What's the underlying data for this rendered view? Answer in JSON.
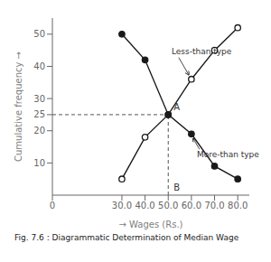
{
  "chart_data": {
    "type": "line",
    "title": "Fig. 7.6 : Diagrammatic Determination of Median Wage",
    "x_label": "→ Wages (Rs.)",
    "y_label": "Cumulative frequency →",
    "x": [
      30,
      40,
      50,
      60,
      70,
      80
    ],
    "series": [
      {
        "name": "Less-than type",
        "color": "#1a1a1a",
        "marker": "open_circle",
        "values": [
          5,
          18,
          25,
          36,
          45,
          52
        ]
      },
      {
        "name": "More-than type",
        "color": "#1a1a1a",
        "marker": "circle",
        "values": [
          50,
          42,
          25,
          19,
          9,
          5
        ]
      }
    ],
    "intersection": {
      "x": 50,
      "y": 25,
      "color": "#555555",
      "line_style": "dashed"
    },
    "annotations": [
      {
        "text": "A",
        "x": 50,
        "y": 25
      },
      {
        "text": "B",
        "x": 50,
        "y": 0
      }
    ],
    "xlim": [
      0,
      85
    ],
    "ylim": [
      0,
      55
    ],
    "xticks": [
      0,
      {
        "value": 30,
        "label": "30.0"
      },
      {
        "value": 40,
        "label": "40.0"
      },
      {
        "value": 50,
        "label": "50.0"
      },
      {
        "value": 60,
        "label": "60.0"
      },
      {
        "value": 70,
        "label": "70.0"
      },
      {
        "value": 80,
        "label": "80.0"
      }
    ],
    "yticks": [
      10,
      20,
      25,
      30,
      40,
      50
    ],
    "grid": false
  }
}
